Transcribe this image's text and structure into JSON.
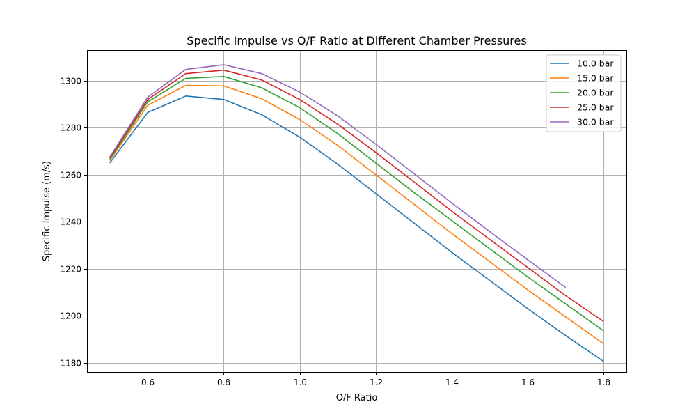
{
  "chart_data": {
    "type": "line",
    "title": "Specific Impulse vs O/F Ratio at Different Chamber Pressures",
    "xlabel": "O/F Ratio",
    "ylabel": "Specific Impulse (m/s)",
    "xlim": [
      0.44,
      1.86
    ],
    "ylim": [
      1176,
      1313
    ],
    "xticks": [
      0.6,
      0.8,
      1.0,
      1.2,
      1.4,
      1.6,
      1.8
    ],
    "xtick_labels": [
      "0.6",
      "0.8",
      "1.0",
      "1.2",
      "1.4",
      "1.6",
      "1.8"
    ],
    "yticks": [
      1180,
      1200,
      1220,
      1240,
      1260,
      1280,
      1300
    ],
    "ytick_labels": [
      "1180",
      "1200",
      "1220",
      "1240",
      "1260",
      "1280",
      "1300"
    ],
    "grid": true,
    "legend_position": "top-right",
    "series": [
      {
        "name": "10.0 bar",
        "color": "#1f77b4",
        "x": [
          0.5,
          0.6,
          0.7,
          0.8,
          0.9,
          1.0,
          1.1,
          1.2,
          1.3,
          1.4,
          1.5,
          1.6,
          1.7,
          1.8
        ],
        "y": [
          1265,
          1286.5,
          1293.5,
          1292,
          1285.5,
          1276,
          1264.5,
          1252,
          1239.5,
          1227,
          1215,
          1203,
          1191.5,
          1180.5
        ]
      },
      {
        "name": "15.0 bar",
        "color": "#ff7f0e",
        "x": [
          0.5,
          0.6,
          0.7,
          0.8,
          0.9,
          1.0,
          1.1,
          1.2,
          1.3,
          1.4,
          1.5,
          1.6,
          1.7,
          1.8
        ],
        "y": [
          1266,
          1289.5,
          1298,
          1297.8,
          1292.3,
          1283.5,
          1272.5,
          1260,
          1247.5,
          1235,
          1223,
          1211,
          1199.5,
          1188
        ]
      },
      {
        "name": "20.0 bar",
        "color": "#2ca02c",
        "x": [
          0.5,
          0.6,
          0.7,
          0.8,
          0.9,
          1.0,
          1.1,
          1.2,
          1.3,
          1.4,
          1.5,
          1.6,
          1.7,
          1.8
        ],
        "y": [
          1266.5,
          1291,
          1301,
          1301.8,
          1297,
          1288.5,
          1277.5,
          1265,
          1252.5,
          1240.5,
          1228.5,
          1216.5,
          1205,
          1193.5
        ]
      },
      {
        "name": "25.0 bar",
        "color": "#d62728",
        "x": [
          0.5,
          0.6,
          0.7,
          0.8,
          0.9,
          1.0,
          1.1,
          1.2,
          1.3,
          1.4,
          1.5,
          1.6,
          1.7,
          1.8
        ],
        "y": [
          1267,
          1292,
          1303,
          1304.5,
          1300.3,
          1292,
          1281.5,
          1269.5,
          1257,
          1244.5,
          1232.5,
          1220.5,
          1208.5,
          1197.5
        ]
      },
      {
        "name": "30.0 bar",
        "color": "#9467bd",
        "x": [
          0.5,
          0.6,
          0.7,
          0.8,
          0.9,
          1.0,
          1.1,
          1.2,
          1.3,
          1.4,
          1.5,
          1.6,
          1.7
        ],
        "y": [
          1267.5,
          1293,
          1304.8,
          1306.8,
          1303,
          1295.2,
          1285,
          1273,
          1260.5,
          1248,
          1235.8,
          1223.8,
          1212
        ]
      }
    ]
  }
}
